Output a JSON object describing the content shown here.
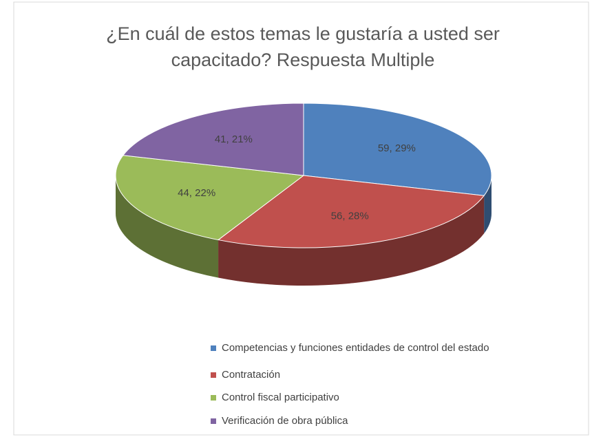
{
  "chart_data": {
    "type": "pie",
    "title": "¿En cuál de estos temas le gustaría a usted ser capacitado? Respuesta Multiple",
    "categories": [
      "Competencias y funciones entidades de control del estado",
      "Contratación",
      "Control fiscal participativo",
      "Verificación de obra pública"
    ],
    "values": [
      59,
      56,
      44,
      41
    ],
    "value_labels": [
      "59, 29%",
      "56, 28%",
      "44, 22%",
      "41, 21%"
    ],
    "colors": [
      "#4f81bd",
      "#c0504d",
      "#9bbb59",
      "#8064a2"
    ],
    "legend": "bottom"
  }
}
